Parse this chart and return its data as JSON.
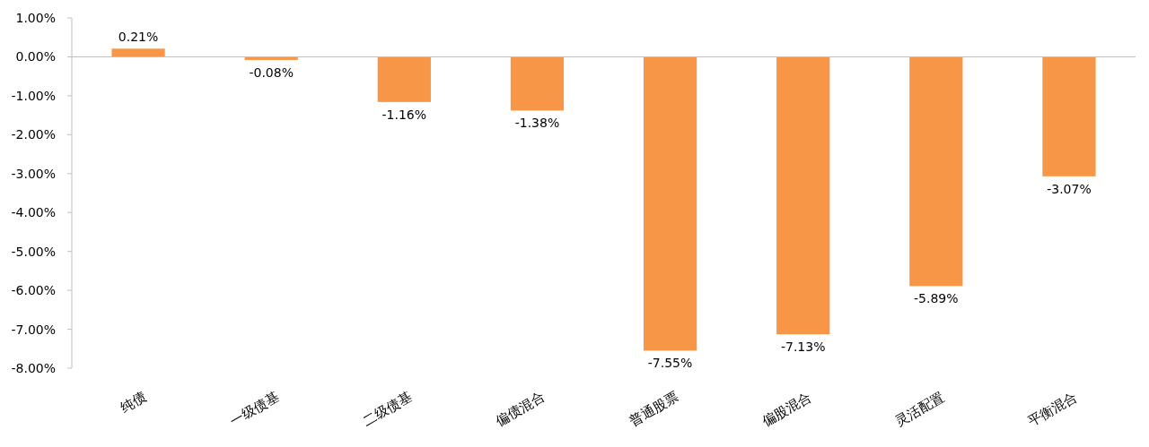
{
  "chart_data": {
    "type": "bar",
    "categories": [
      "纯债",
      "一级债基",
      "二级债基",
      "偏债混合",
      "普通股票",
      "偏股混合",
      "灵活配置",
      "平衡混合"
    ],
    "values": [
      0.21,
      -0.08,
      -1.16,
      -1.38,
      -7.55,
      -7.13,
      -5.89,
      -3.07
    ],
    "value_labels": [
      "0.21%",
      "-0.08%",
      "-1.16%",
      "-1.38%",
      "-7.55%",
      "-7.13%",
      "-5.89%",
      "-3.07%"
    ],
    "color": "#f79646",
    "ylim": [
      -8,
      1
    ],
    "yticks": [
      {
        "value": 1,
        "label": "1.00%"
      },
      {
        "value": 0,
        "label": "0.00%"
      },
      {
        "value": -1,
        "label": "-1.00%"
      },
      {
        "value": -2,
        "label": "-2.00%"
      },
      {
        "value": -3,
        "label": "-3.00%"
      },
      {
        "value": -4,
        "label": "-4.00%"
      },
      {
        "value": -5,
        "label": "-5.00%"
      },
      {
        "value": -6,
        "label": "-6.00%"
      },
      {
        "value": -7,
        "label": "-7.00%"
      },
      {
        "value": -8,
        "label": "-8.00%"
      }
    ]
  }
}
